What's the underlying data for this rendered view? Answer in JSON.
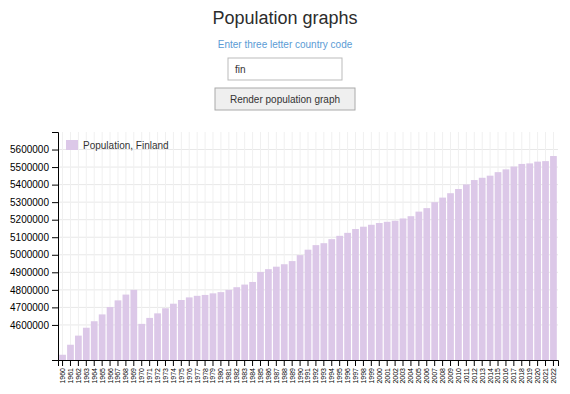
{
  "chart_data": {
    "type": "bar",
    "title": "Population graphs",
    "subtitle": "Enter three letter country code",
    "annotations": [
      "fin",
      "Render population graph"
    ],
    "categories": [
      "1960",
      "1961",
      "1962",
      "1963",
      "1964",
      "1965",
      "1966",
      "1967",
      "1968",
      "1969",
      "1970",
      "1971",
      "1972",
      "1973",
      "1974",
      "1975",
      "1976",
      "1977",
      "1978",
      "1979",
      "1980",
      "1981",
      "1982",
      "1983",
      "1984",
      "1985",
      "1986",
      "1987",
      "1988",
      "1989",
      "1990",
      "1991",
      "1992",
      "1993",
      "1994",
      "1995",
      "1996",
      "1997",
      "1998",
      "1999",
      "2000",
      "2001",
      "2002",
      "2003",
      "2004",
      "2005",
      "2006",
      "2007",
      "2008",
      "2009",
      "2010",
      "2011",
      "2012",
      "2013",
      "2014",
      "2015",
      "2016",
      "2017",
      "2018",
      "2019",
      "2020",
      "2021",
      "2022"
    ],
    "series": [
      {
        "name": "Population, Finland",
        "color": "#dcc8e8",
        "values": [
          4430000,
          4487000,
          4539000,
          4584000,
          4621000,
          4660000,
          4702000,
          4740000,
          4773000,
          4800000,
          4606000,
          4640000,
          4666000,
          4695000,
          4721000,
          4742000,
          4757000,
          4766000,
          4771000,
          4780000,
          4787000,
          4800000,
          4815000,
          4830000,
          4845000,
          4902000,
          4918000,
          4932000,
          4946000,
          4964000,
          4998000,
          5029000,
          5055000,
          5066000,
          5089000,
          5108000,
          5125000,
          5147000,
          5160000,
          5171000,
          5181000,
          5188000,
          5194000,
          5207000,
          5220000,
          5246000,
          5266000,
          5300000,
          5326000,
          5351000,
          5375000,
          5401000,
          5426000,
          5439000,
          5451000,
          5471000,
          5487000,
          5503000,
          5518000,
          5521000,
          5531000,
          5534000,
          5563000
        ]
      }
    ],
    "ylim": [
      4400000,
      5700000
    ],
    "yticks": [
      4600000,
      4700000,
      4800000,
      4900000,
      5000000,
      5100000,
      5200000,
      5300000,
      5400000,
      5500000,
      5600000
    ],
    "grid": true,
    "legend": "upper left"
  }
}
